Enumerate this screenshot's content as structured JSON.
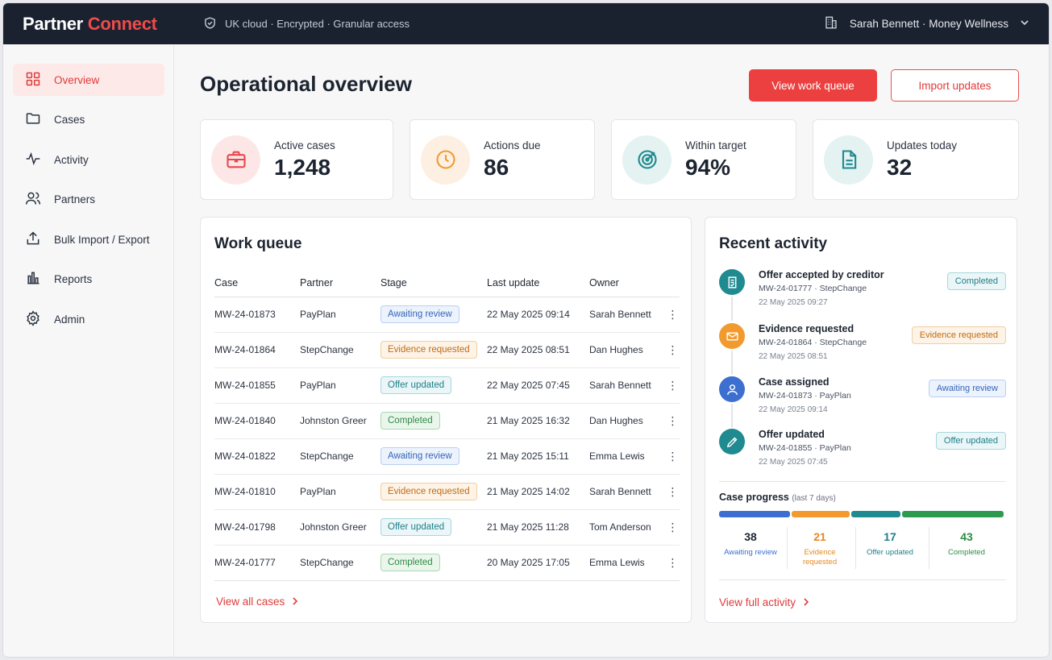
{
  "brand": {
    "part1": "Partner",
    "part2": "Connect"
  },
  "header": {
    "security": "UK cloud · Encrypted · Granular access",
    "account": "Sarah Bennett · Money Wellness"
  },
  "sidebar": {
    "items": [
      {
        "label": "Overview",
        "icon": "grid-icon",
        "active": true
      },
      {
        "label": "Cases",
        "icon": "folder-icon"
      },
      {
        "label": "Activity",
        "icon": "pulse-icon"
      },
      {
        "label": "Partners",
        "icon": "people-icon"
      },
      {
        "label": "Bulk Import / Export",
        "icon": "upload-icon"
      },
      {
        "label": "Reports",
        "icon": "bar-chart-icon"
      },
      {
        "label": "Admin",
        "icon": "gear-icon"
      }
    ]
  },
  "main": {
    "title": "Operational overview",
    "primary_button": "View work queue",
    "secondary_button": "Import updates"
  },
  "stats": [
    {
      "label": "Active cases",
      "value": "1,248",
      "icon": "briefcase-icon",
      "color": "#e5484d"
    },
    {
      "label": "Actions due",
      "value": "86",
      "icon": "clock-icon",
      "color": "#f29a2e"
    },
    {
      "label": "Within target",
      "value": "94%",
      "icon": "target-icon",
      "color": "#1f8a8f"
    },
    {
      "label": "Updates today",
      "value": "32",
      "icon": "document-icon",
      "color": "#1f8a8f"
    }
  ],
  "work_queue": {
    "title": "Work queue",
    "columns": [
      "Case",
      "Partner",
      "Stage",
      "Last update",
      "Owner"
    ],
    "rows": [
      {
        "case": "MW-24-01873",
        "partner": "PayPlan",
        "stage": "Awaiting review",
        "updated": "22 May 2025 09:14",
        "owner": "Sarah Bennett"
      },
      {
        "case": "MW-24-01864",
        "partner": "StepChange",
        "stage": "Evidence requested",
        "updated": "22 May 2025 08:51",
        "owner": "Dan Hughes"
      },
      {
        "case": "MW-24-01855",
        "partner": "PayPlan",
        "stage": "Offer updated",
        "updated": "22 May 2025 07:45",
        "owner": "Sarah Bennett"
      },
      {
        "case": "MW-24-01840",
        "partner": "Johnston Greer",
        "stage": "Completed",
        "updated": "21 May 2025 16:32",
        "owner": "Dan Hughes"
      },
      {
        "case": "MW-24-01822",
        "partner": "StepChange",
        "stage": "Awaiting review",
        "updated": "21 May 2025 15:11",
        "owner": "Emma Lewis"
      },
      {
        "case": "MW-24-01810",
        "partner": "PayPlan",
        "stage": "Evidence requested",
        "updated": "21 May 2025 14:02",
        "owner": "Sarah Bennett"
      },
      {
        "case": "MW-24-01798",
        "partner": "Johnston Greer",
        "stage": "Offer updated",
        "updated": "21 May 2025 11:28",
        "owner": "Tom Anderson"
      },
      {
        "case": "MW-24-01777",
        "partner": "StepChange",
        "stage": "Completed",
        "updated": "20 May 2025 17:05",
        "owner": "Emma Lewis"
      }
    ],
    "link": "View all cases"
  },
  "recent_activity": {
    "title": "Recent activity",
    "items": [
      {
        "title": "Offer accepted by creditor",
        "ref": "MW-24-01777 · StepChange",
        "time": "22 May 2025 09:27",
        "badge": "Completed",
        "icon": "document-check-icon",
        "color": "#1f8a8f"
      },
      {
        "title": "Evidence requested",
        "ref": "MW-24-01864 · StepChange",
        "time": "22 May 2025 08:51",
        "badge": "Evidence requested",
        "icon": "mail-icon",
        "color": "#f29a2e"
      },
      {
        "title": "Case assigned",
        "ref": "MW-24-01873 · PayPlan",
        "time": "22 May 2025 09:14",
        "badge": "Awaiting review",
        "icon": "user-icon",
        "color": "#3d6fd1"
      },
      {
        "title": "Offer updated",
        "ref": "MW-24-01855 · PayPlan",
        "time": "22 May 2025 07:45",
        "badge": "Offer updated",
        "icon": "pencil-icon",
        "color": "#1f8a8f"
      }
    ],
    "progress": {
      "title": "Case progress",
      "period": "(last 7 days)",
      "segments": [
        {
          "value": "38",
          "label": "Awaiting review",
          "color": "#3d6fd1"
        },
        {
          "value": "21",
          "label": "Evidence requested",
          "color": "#f29a2e"
        },
        {
          "value": "17",
          "label": "Offer updated",
          "color": "#1f8a8f"
        },
        {
          "value": "43",
          "label": "Completed",
          "color": "#2e9a4e"
        }
      ]
    },
    "link": "View full activity"
  }
}
